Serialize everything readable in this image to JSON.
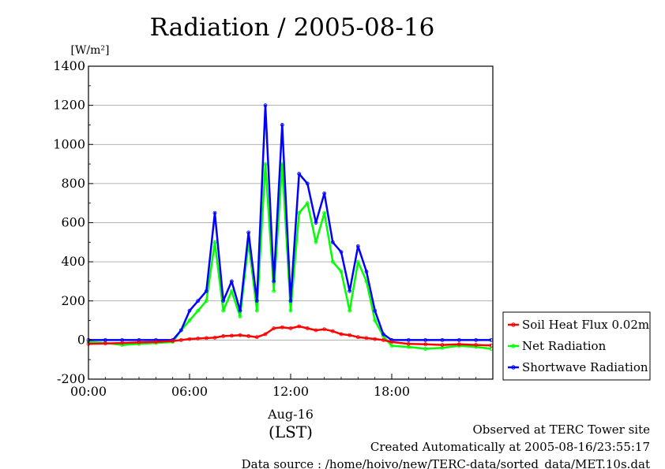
{
  "chart_data": {
    "type": "line",
    "title": "Radiation / 2005-08-16",
    "ylabel": "[W/m²]",
    "xlabel": "(LST)",
    "x_date_label": "Aug-16",
    "ylim": [
      -200,
      1400
    ],
    "xlim": [
      0,
      24
    ],
    "y_ticks": [
      "-200",
      "0",
      "200",
      "400",
      "600",
      "800",
      "1000",
      "1200",
      "1400"
    ],
    "x_ticks": [
      "00:00",
      "06:00",
      "12:00",
      "18:00"
    ],
    "grid": true,
    "legend_position": "right",
    "x_hours": [
      0,
      1,
      2,
      3,
      4,
      5,
      5.5,
      6,
      6.5,
      7,
      7.5,
      8,
      8.5,
      9,
      9.5,
      10,
      10.5,
      11,
      11.5,
      12,
      12.5,
      13,
      13.5,
      14,
      14.5,
      15,
      15.5,
      16,
      16.5,
      17,
      17.5,
      18,
      19,
      20,
      21,
      22,
      23,
      23.9
    ],
    "series": [
      {
        "name": "Soil Heat Flux 0.02m",
        "color": "#ff0000",
        "values": [
          -20,
          -18,
          -15,
          -12,
          -10,
          -5,
          0,
          5,
          8,
          10,
          12,
          20,
          22,
          25,
          20,
          15,
          30,
          60,
          65,
          60,
          70,
          60,
          50,
          55,
          45,
          30,
          25,
          15,
          10,
          5,
          0,
          -10,
          -20,
          -22,
          -25,
          -22,
          -25,
          -28
        ]
      },
      {
        "name": "Net Radiation",
        "color": "#00ff00",
        "values": [
          -10,
          -15,
          -25,
          -20,
          -15,
          -10,
          50,
          100,
          150,
          200,
          500,
          150,
          250,
          120,
          500,
          150,
          900,
          250,
          900,
          150,
          650,
          700,
          500,
          650,
          400,
          350,
          150,
          400,
          300,
          100,
          20,
          -30,
          -35,
          -45,
          -40,
          -30,
          -35,
          -45
        ]
      },
      {
        "name": "Shortwave Radiation",
        "color": "#0000ff",
        "values": [
          0,
          0,
          0,
          0,
          0,
          0,
          50,
          150,
          200,
          250,
          650,
          200,
          300,
          150,
          550,
          200,
          1200,
          300,
          1100,
          200,
          850,
          800,
          600,
          750,
          500,
          450,
          250,
          480,
          350,
          150,
          30,
          0,
          0,
          0,
          0,
          0,
          0,
          0
        ]
      }
    ]
  },
  "footer": {
    "line1": "Observed at TERC Tower site",
    "line2": "Created Automatically at 2005-08-16/23:55:17",
    "line3": "Data source : /home/hoivo/new/TERC-data/sorted_data/MET.10s.dat"
  }
}
